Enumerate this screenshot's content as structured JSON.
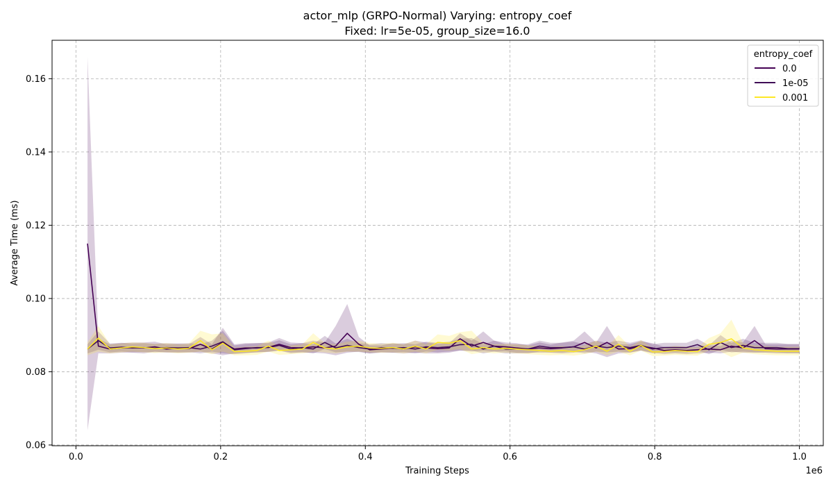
{
  "chart_data": {
    "type": "line",
    "title": "actor_mlp (GRPO-Normal) Varying: entropy_coef",
    "subtitle": "Fixed: lr=5e-05, group_size=16.0",
    "xlabel": "Training Steps",
    "ylabel": "Average Time (ms)",
    "x_offset_label": "1e6",
    "xlim": [
      -0.033,
      1.033
    ],
    "ylim": [
      0.0598,
      0.1705
    ],
    "x_ticks": [
      0.0,
      0.2,
      0.4,
      0.6,
      0.8,
      1.0
    ],
    "x_tick_labels": [
      "0.0",
      "0.2",
      "0.4",
      "0.6",
      "0.8",
      "1.0"
    ],
    "y_ticks": [
      0.06,
      0.08,
      0.1,
      0.12,
      0.14,
      0.16
    ],
    "y_tick_labels": [
      "0.06",
      "0.08",
      "0.10",
      "0.12",
      "0.14",
      "0.16"
    ],
    "grid": true,
    "legend": {
      "title": "entropy_coef",
      "placement": "top-right"
    },
    "x": [
      0.016,
      0.031,
      0.047,
      0.063,
      0.078,
      0.094,
      0.109,
      0.125,
      0.141,
      0.156,
      0.172,
      0.188,
      0.203,
      0.219,
      0.234,
      0.25,
      0.266,
      0.281,
      0.297,
      0.313,
      0.328,
      0.344,
      0.359,
      0.375,
      0.391,
      0.406,
      0.422,
      0.438,
      0.453,
      0.469,
      0.484,
      0.5,
      0.516,
      0.531,
      0.547,
      0.563,
      0.578,
      0.594,
      0.609,
      0.625,
      0.641,
      0.656,
      0.672,
      0.688,
      0.703,
      0.719,
      0.734,
      0.75,
      0.766,
      0.781,
      0.797,
      0.813,
      0.828,
      0.844,
      0.859,
      0.875,
      0.891,
      0.906,
      0.922,
      0.938,
      0.953,
      0.969,
      0.984,
      1.0
    ],
    "series": [
      {
        "name": "0.0",
        "color": "#440154",
        "values": [
          0.115,
          0.087,
          0.0862,
          0.0865,
          0.0866,
          0.0865,
          0.0868,
          0.0862,
          0.0864,
          0.0863,
          0.0875,
          0.0862,
          0.088,
          0.0862,
          0.0865,
          0.0865,
          0.0867,
          0.0875,
          0.0866,
          0.0865,
          0.0868,
          0.0865,
          0.087,
          0.0905,
          0.0875,
          0.086,
          0.0862,
          0.0865,
          0.0862,
          0.0868,
          0.0865,
          0.0863,
          0.0865,
          0.089,
          0.087,
          0.088,
          0.087,
          0.0868,
          0.0865,
          0.0862,
          0.0865,
          0.0863,
          0.0865,
          0.0868,
          0.088,
          0.0865,
          0.088,
          0.0862,
          0.0863,
          0.087,
          0.0865,
          0.0858,
          0.086,
          0.0858,
          0.086,
          0.0862,
          0.086,
          0.087,
          0.0865,
          0.0885,
          0.0863,
          0.0862,
          0.0862,
          0.0862
        ],
        "lower": [
          0.064,
          0.085,
          0.085,
          0.0852,
          0.0852,
          0.085,
          0.0855,
          0.0852,
          0.0852,
          0.0852,
          0.0855,
          0.085,
          0.0845,
          0.085,
          0.0852,
          0.0852,
          0.0855,
          0.0858,
          0.0853,
          0.0852,
          0.0852,
          0.085,
          0.0845,
          0.0852,
          0.0855,
          0.085,
          0.0852,
          0.0852,
          0.085,
          0.0852,
          0.085,
          0.085,
          0.0852,
          0.0858,
          0.0855,
          0.0858,
          0.0855,
          0.0856,
          0.0852,
          0.0852,
          0.0852,
          0.0852,
          0.085,
          0.0852,
          0.0855,
          0.085,
          0.084,
          0.085,
          0.0852,
          0.0858,
          0.0852,
          0.0848,
          0.085,
          0.0848,
          0.085,
          0.0852,
          0.085,
          0.0855,
          0.0852,
          0.0852,
          0.0852,
          0.085,
          0.085,
          0.085
        ],
        "upper": [
          0.166,
          0.089,
          0.0875,
          0.0878,
          0.088,
          0.088,
          0.0882,
          0.0875,
          0.0876,
          0.0875,
          0.0895,
          0.0875,
          0.092,
          0.0875,
          0.0878,
          0.0878,
          0.088,
          0.0892,
          0.088,
          0.0878,
          0.0885,
          0.088,
          0.0925,
          0.0985,
          0.0895,
          0.0872,
          0.0872,
          0.0878,
          0.0875,
          0.0885,
          0.088,
          0.0876,
          0.0878,
          0.0905,
          0.0885,
          0.091,
          0.0885,
          0.088,
          0.0878,
          0.0872,
          0.088,
          0.0874,
          0.088,
          0.0885,
          0.091,
          0.088,
          0.0925,
          0.0875,
          0.0875,
          0.0883,
          0.0878,
          0.0868,
          0.087,
          0.0868,
          0.087,
          0.0872,
          0.087,
          0.0885,
          0.088,
          0.0925,
          0.0875,
          0.0875,
          0.0875,
          0.0875
        ]
      },
      {
        "name": "1e-05",
        "color": "#3f0c56",
        "values": [
          0.0862,
          0.0885,
          0.0865,
          0.0867,
          0.0865,
          0.0866,
          0.0864,
          0.0866,
          0.0865,
          0.0866,
          0.0862,
          0.087,
          0.0882,
          0.086,
          0.0863,
          0.0866,
          0.0866,
          0.0872,
          0.0862,
          0.0866,
          0.0862,
          0.088,
          0.0865,
          0.0872,
          0.0866,
          0.0862,
          0.0866,
          0.0864,
          0.0866,
          0.0862,
          0.0868,
          0.0866,
          0.0868,
          0.0874,
          0.0875,
          0.0862,
          0.087,
          0.0862,
          0.0862,
          0.0862,
          0.087,
          0.0866,
          0.0866,
          0.0868,
          0.0862,
          0.087,
          0.0866,
          0.087,
          0.0866,
          0.0872,
          0.0862,
          0.0866,
          0.0866,
          0.0866,
          0.0874,
          0.086,
          0.088,
          0.0866,
          0.0872,
          0.0866,
          0.0866,
          0.0866,
          0.0863,
          0.0863
        ],
        "lower": [
          0.085,
          0.086,
          0.0853,
          0.0855,
          0.0853,
          0.0854,
          0.0853,
          0.0854,
          0.0853,
          0.0854,
          0.085,
          0.0855,
          0.085,
          0.0848,
          0.085,
          0.0854,
          0.0854,
          0.0858,
          0.085,
          0.0854,
          0.085,
          0.0862,
          0.0853,
          0.0855,
          0.0854,
          0.085,
          0.0854,
          0.0852,
          0.0854,
          0.085,
          0.0855,
          0.0853,
          0.0855,
          0.0858,
          0.0858,
          0.085,
          0.0855,
          0.085,
          0.085,
          0.085,
          0.0855,
          0.0853,
          0.0853,
          0.0855,
          0.085,
          0.0855,
          0.0853,
          0.0855,
          0.0853,
          0.0858,
          0.085,
          0.0853,
          0.0853,
          0.0853,
          0.0858,
          0.0848,
          0.086,
          0.0853,
          0.0855,
          0.0853,
          0.0853,
          0.0853,
          0.0851,
          0.0851
        ],
        "upper": [
          0.0875,
          0.091,
          0.0877,
          0.0879,
          0.0877,
          0.0878,
          0.0876,
          0.0878,
          0.0877,
          0.0878,
          0.0875,
          0.0885,
          0.0912,
          0.0872,
          0.0876,
          0.0878,
          0.0878,
          0.0886,
          0.0875,
          0.0878,
          0.0875,
          0.0898,
          0.0877,
          0.089,
          0.0878,
          0.0875,
          0.0878,
          0.0876,
          0.0878,
          0.0875,
          0.0882,
          0.0879,
          0.0882,
          0.089,
          0.0892,
          0.0875,
          0.0885,
          0.0875,
          0.0875,
          0.0875,
          0.0885,
          0.0879,
          0.0879,
          0.0882,
          0.0875,
          0.0885,
          0.0879,
          0.0885,
          0.0879,
          0.0886,
          0.0875,
          0.0879,
          0.0879,
          0.0879,
          0.089,
          0.0872,
          0.09,
          0.0879,
          0.089,
          0.0879,
          0.0879,
          0.0879,
          0.0876,
          0.0876
        ]
      },
      {
        "name": "0.001",
        "color": "#fde725",
        "values": [
          0.0862,
          0.0892,
          0.0862,
          0.0865,
          0.0868,
          0.0866,
          0.0863,
          0.0865,
          0.0862,
          0.0864,
          0.0885,
          0.086,
          0.0878,
          0.0855,
          0.0856,
          0.0858,
          0.087,
          0.0858,
          0.086,
          0.0862,
          0.088,
          0.0865,
          0.0862,
          0.0868,
          0.087,
          0.0865,
          0.0864,
          0.0866,
          0.0862,
          0.087,
          0.0862,
          0.088,
          0.0878,
          0.0885,
          0.0862,
          0.0866,
          0.0862,
          0.0864,
          0.0862,
          0.086,
          0.0858,
          0.0856,
          0.0858,
          0.0855,
          0.086,
          0.087,
          0.0856,
          0.0875,
          0.0856,
          0.0872,
          0.0854,
          0.0855,
          0.0858,
          0.0856,
          0.0855,
          0.0875,
          0.088,
          0.089,
          0.0865,
          0.086,
          0.0858,
          0.0856,
          0.0856,
          0.0856
        ],
        "lower": [
          0.0845,
          0.0855,
          0.085,
          0.0853,
          0.0855,
          0.0853,
          0.0851,
          0.0853,
          0.085,
          0.0852,
          0.0855,
          0.0848,
          0.0855,
          0.0845,
          0.0845,
          0.0846,
          0.0855,
          0.0846,
          0.0848,
          0.085,
          0.0855,
          0.0853,
          0.085,
          0.0855,
          0.0855,
          0.0853,
          0.0852,
          0.0853,
          0.085,
          0.0855,
          0.085,
          0.086,
          0.0858,
          0.0862,
          0.0848,
          0.0853,
          0.085,
          0.0852,
          0.085,
          0.0848,
          0.0846,
          0.0845,
          0.0846,
          0.0844,
          0.0848,
          0.0855,
          0.0845,
          0.0855,
          0.0845,
          0.0858,
          0.0843,
          0.0844,
          0.0846,
          0.0845,
          0.0844,
          0.0858,
          0.0855,
          0.084,
          0.0852,
          0.0848,
          0.0846,
          0.0845,
          0.0845,
          0.0845
        ],
        "upper": [
          0.088,
          0.0925,
          0.0875,
          0.0877,
          0.088,
          0.0879,
          0.0876,
          0.0878,
          0.0875,
          0.0877,
          0.0912,
          0.0902,
          0.0905,
          0.0866,
          0.0868,
          0.087,
          0.0885,
          0.087,
          0.0872,
          0.0875,
          0.0905,
          0.0878,
          0.0875,
          0.0882,
          0.0885,
          0.0878,
          0.0876,
          0.0879,
          0.0875,
          0.0885,
          0.0875,
          0.0902,
          0.0898,
          0.0908,
          0.0912,
          0.0879,
          0.0875,
          0.0876,
          0.0875,
          0.0872,
          0.087,
          0.0868,
          0.087,
          0.0866,
          0.0872,
          0.0885,
          0.0868,
          0.09,
          0.0868,
          0.0886,
          0.0865,
          0.0866,
          0.087,
          0.0868,
          0.0866,
          0.0892,
          0.0905,
          0.0942,
          0.0878,
          0.0872,
          0.087,
          0.0868,
          0.0868,
          0.0868
        ]
      }
    ]
  }
}
